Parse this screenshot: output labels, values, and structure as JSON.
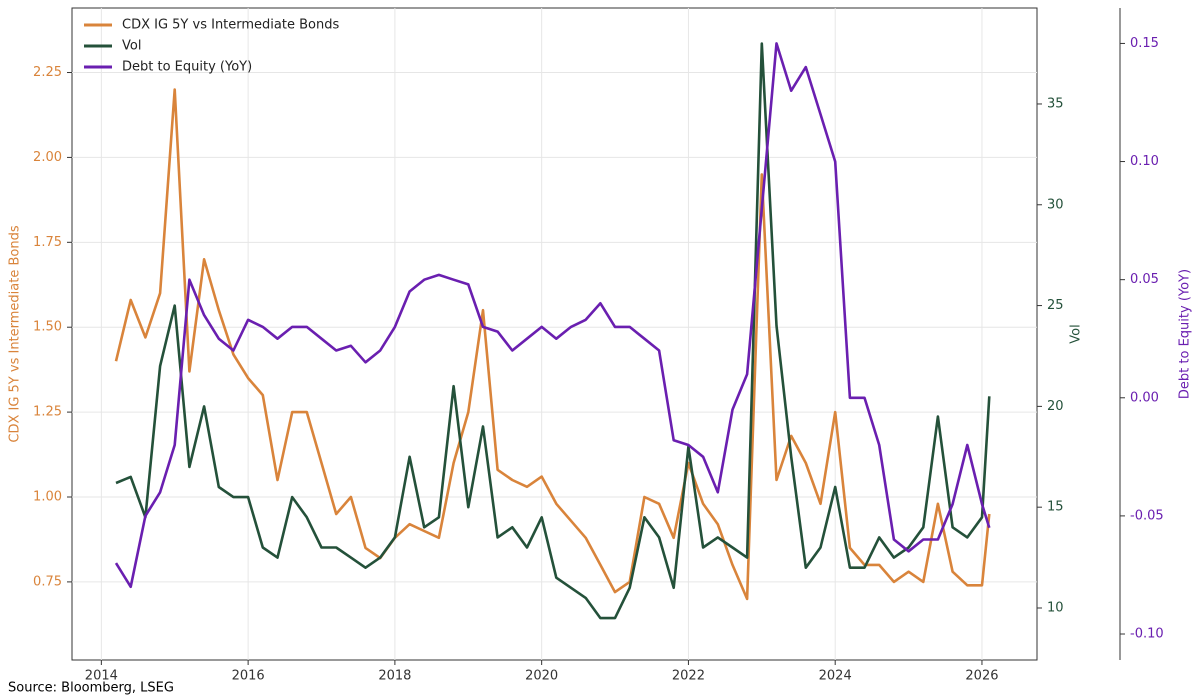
{
  "chart_data": {
    "type": "line",
    "source": "Source: Bloomberg, LSEG",
    "x": [
      2014.2,
      2014.4,
      2014.6,
      2014.8,
      2015.0,
      2015.2,
      2015.4,
      2015.6,
      2015.8,
      2016.0,
      2016.2,
      2016.4,
      2016.6,
      2016.8,
      2017.0,
      2017.2,
      2017.4,
      2017.6,
      2017.8,
      2018.0,
      2018.2,
      2018.4,
      2018.6,
      2018.8,
      2019.0,
      2019.2,
      2019.4,
      2019.6,
      2019.8,
      2020.0,
      2020.2,
      2020.4,
      2020.6,
      2020.8,
      2021.0,
      2021.2,
      2021.4,
      2021.6,
      2021.8,
      2022.0,
      2022.2,
      2022.4,
      2022.6,
      2022.8,
      2023.0,
      2023.2,
      2023.4,
      2023.6,
      2023.8,
      2024.0,
      2024.2,
      2024.4,
      2024.6,
      2024.8,
      2025.0,
      2025.2,
      2025.4,
      2025.6,
      2025.8,
      2026.0,
      2026.1
    ],
    "xlim": [
      2013.6,
      2026.75
    ],
    "xticks": [
      2014,
      2016,
      2018,
      2020,
      2022,
      2024,
      2026
    ],
    "ylabel": "CDX IG 5Y vs Intermediate Bonds",
    "ylim": [
      0.52,
      2.44
    ],
    "yticks": [
      0.75,
      {
        "value": 1.0,
        "label": "1.00"
      },
      1.25,
      {
        "value": 1.5,
        "label": "1.50"
      },
      1.75,
      {
        "value": 2.0,
        "label": "2.00"
      },
      2.25
    ],
    "y2label": "Vol",
    "y2lim": [
      7.42,
      39.76
    ],
    "y2ticks": [
      10,
      15,
      20,
      25,
      30,
      35
    ],
    "y3label": "Debt to Equity (YoY)",
    "y3lim": [
      -0.111,
      0.165
    ],
    "y3ticks": [
      {
        "value": -0.1,
        "label": "-0.10"
      },
      -0.05,
      {
        "value": 0,
        "label": "0.00"
      },
      0.05,
      {
        "value": 0.1,
        "label": "0.10"
      },
      0.15
    ],
    "grid": true,
    "legend": "upper left",
    "series": [
      {
        "name": "CDX IG 5Y vs Intermediate Bonds",
        "color": "#d9843b",
        "axis": "y",
        "values": [
          1.4,
          1.58,
          1.47,
          1.6,
          2.2,
          1.37,
          1.7,
          1.55,
          1.42,
          1.35,
          1.3,
          1.05,
          1.25,
          1.25,
          1.1,
          0.95,
          1.0,
          0.85,
          0.82,
          0.88,
          0.92,
          0.9,
          0.88,
          1.1,
          1.25,
          1.55,
          1.08,
          1.05,
          1.03,
          1.06,
          0.98,
          0.93,
          0.88,
          0.8,
          0.72,
          0.75,
          1.0,
          0.98,
          0.88,
          1.1,
          0.98,
          0.92,
          0.8,
          0.7,
          1.95,
          1.05,
          1.18,
          1.1,
          0.98,
          1.25,
          0.85,
          0.8,
          0.8,
          0.75,
          0.78,
          0.75,
          0.98,
          0.78,
          0.74,
          0.74,
          0.95
        ]
      },
      {
        "name": "Vol",
        "color": "#24513a",
        "axis": "y2",
        "values": [
          16.2,
          16.5,
          14.5,
          22,
          25,
          17,
          20,
          16,
          15.5,
          15.5,
          13,
          12.5,
          15.5,
          14.5,
          13,
          13,
          12.5,
          12,
          12.5,
          13.5,
          17.5,
          14,
          14.5,
          21,
          15,
          19,
          13.5,
          14,
          13,
          14.5,
          11.5,
          11,
          10.5,
          9.5,
          9.5,
          11,
          14.5,
          13.5,
          11,
          18,
          13,
          13.5,
          13,
          12.5,
          38,
          24,
          17.5,
          12,
          13,
          16,
          12,
          12,
          13.5,
          12.5,
          13,
          14,
          19.5,
          14,
          13.5,
          14.5,
          20.5
        ]
      },
      {
        "name": "Debt to Equity (YoY)",
        "color": "#6a1fb0",
        "axis": "y3",
        "values": [
          -0.07,
          -0.08,
          -0.05,
          -0.04,
          -0.02,
          0.05,
          0.035,
          0.025,
          0.02,
          0.033,
          0.03,
          0.025,
          0.03,
          0.03,
          0.025,
          0.02,
          0.022,
          0.015,
          0.02,
          0.03,
          0.045,
          0.05,
          0.052,
          0.05,
          0.048,
          0.03,
          0.028,
          0.02,
          0.025,
          0.03,
          0.025,
          0.03,
          0.033,
          0.04,
          0.03,
          0.03,
          0.025,
          0.02,
          -0.018,
          -0.02,
          -0.025,
          -0.04,
          -0.005,
          0.01,
          0.08,
          0.15,
          0.13,
          0.14,
          0.12,
          0.1,
          0.0,
          0.0,
          -0.02,
          -0.06,
          -0.065,
          -0.06,
          -0.06,
          -0.045,
          -0.02,
          -0.045,
          -0.055
        ]
      }
    ]
  }
}
